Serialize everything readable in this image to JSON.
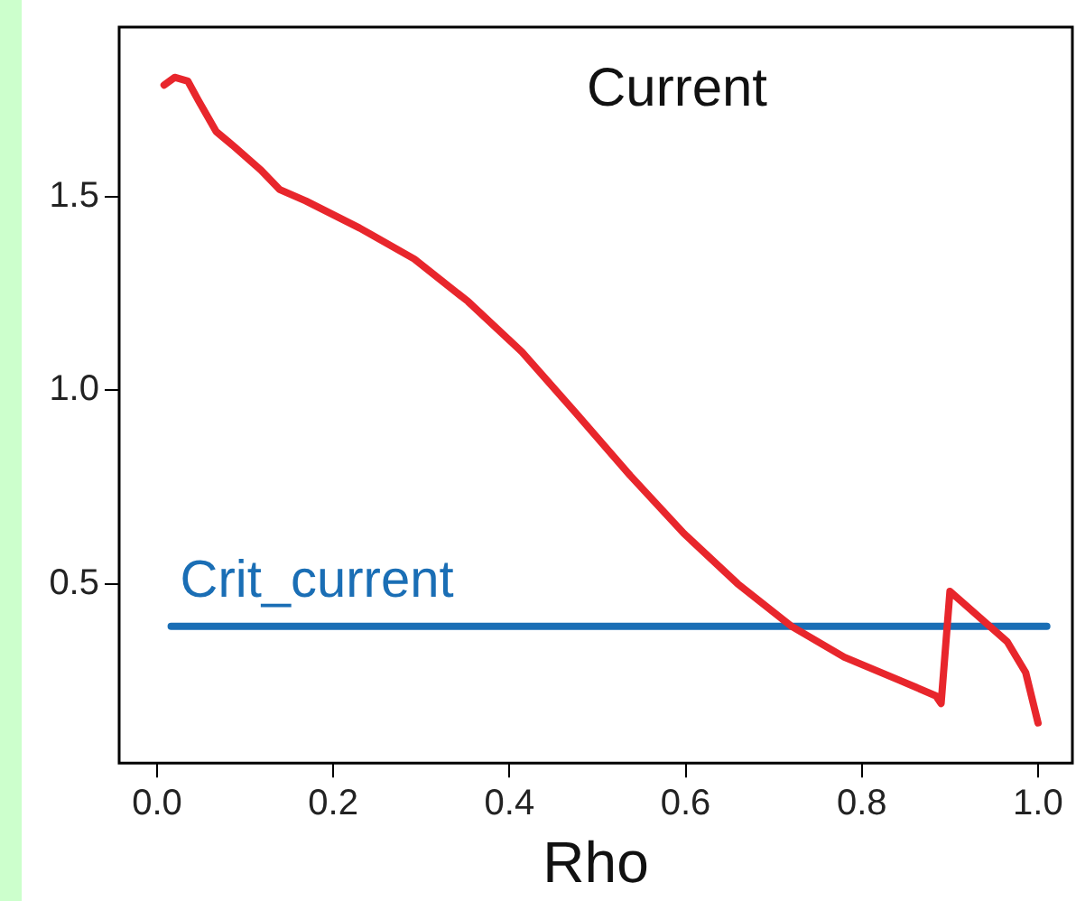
{
  "chart_data": {
    "type": "line",
    "title": "Current",
    "xlabel": "Rho",
    "xlim": [
      -0.043,
      1.039
    ],
    "ylim": [
      0.036,
      1.94
    ],
    "xticks": [
      {
        "value": 0,
        "label": "0.0"
      },
      0.2,
      0.4,
      0.6,
      0.8,
      {
        "value": 1,
        "label": "1.0"
      }
    ],
    "yticks": [
      {
        "value": 0.5,
        "label": "0.5"
      },
      {
        "value": 1,
        "label": "1.0"
      },
      1.5
    ],
    "grid": false,
    "legend": false,
    "marker": "none",
    "line_style": "solid",
    "series": [
      {
        "color": "#e8262c",
        "x": [
          0.008,
          0.02,
          0.035,
          0.047,
          0.067,
          0.088,
          0.118,
          0.139,
          0.169,
          0.23,
          0.292,
          0.353,
          0.414,
          0.476,
          0.537,
          0.598,
          0.659,
          0.72,
          0.78,
          0.843,
          0.884,
          0.89,
          0.9,
          0.935,
          0.965,
          0.986,
          1.0
        ],
        "values": [
          1.79,
          1.81,
          1.8,
          1.75,
          1.67,
          1.63,
          1.57,
          1.52,
          1.49,
          1.42,
          1.34,
          1.23,
          1.1,
          0.94,
          0.78,
          0.63,
          0.5,
          0.39,
          0.31,
          0.25,
          0.21,
          0.19,
          0.48,
          0.41,
          0.35,
          0.27,
          0.14
        ]
      },
      {
        "name": "Crit_current",
        "color": "#1a6eb5",
        "x": [
          0.016,
          1.01
        ],
        "values": [
          0.39,
          0.39
        ]
      }
    ]
  }
}
